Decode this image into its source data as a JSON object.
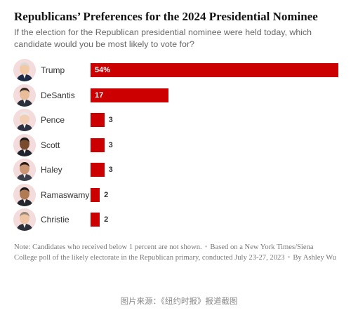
{
  "title": "Republicans’ Preferences for the 2024 Presidential Nominee",
  "subtitle": "If the election for the Republican presidential nominee were held today, which candidate would you be most likely to vote for?",
  "colors": {
    "bar": "#cc0000",
    "avatar_bg": "#f4dcdc"
  },
  "chart_data": {
    "type": "bar",
    "orientation": "horizontal",
    "categories": [
      "Trump",
      "DeSantis",
      "Pence",
      "Scott",
      "Haley",
      "Ramaswamy",
      "Christie"
    ],
    "values": [
      54,
      17,
      3,
      3,
      3,
      2,
      2
    ],
    "value_labels": [
      "54%",
      "17",
      "3",
      "3",
      "3",
      "2",
      "2"
    ],
    "xlim": [
      0,
      54
    ],
    "unit": "percent",
    "grid": false,
    "legend": "none",
    "candidate_icons": [
      "trump-portrait-icon",
      "desantis-portrait-icon",
      "pence-portrait-icon",
      "scott-portrait-icon",
      "haley-portrait-icon",
      "ramaswamy-portrait-icon",
      "christie-portrait-icon"
    ]
  },
  "note": {
    "part1": "Note: Candidates who received below 1 percent are not shown.",
    "separator": "•",
    "part2": "Based on a New York Times/Siena College poll of the likely electorate in the Republican primary, conducted July 23-27, 2023",
    "part3": "By Ashley Wu"
  },
  "source_caption": "图片来源：《纽约时报》报道截图"
}
